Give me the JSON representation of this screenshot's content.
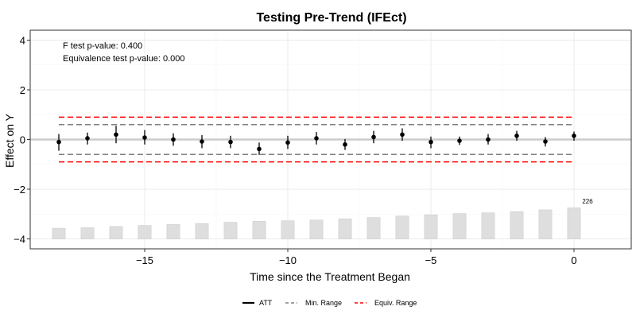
{
  "chart_data": {
    "type": "scatter",
    "title": "Testing Pre-Trend (IFEct)",
    "xlabel": "Time since the Treatment Began",
    "ylabel": "Effect on Y",
    "xlim": [
      -19,
      2
    ],
    "ylim": [
      -4.4,
      4.4
    ],
    "x_ticks": [
      -15,
      -10,
      -5,
      0
    ],
    "y_ticks": [
      -4,
      -2,
      0,
      2,
      4
    ],
    "grid": true,
    "annotations": [
      "F test p-value: 0.400",
      "Equivalence test p-value: 0.000"
    ],
    "count_label": "226",
    "legend": {
      "position": "bottom",
      "entries": [
        {
          "label": "ATT",
          "style": "solid",
          "color": "#000000"
        },
        {
          "label": "Min. Range",
          "style": "dashed",
          "color": "#808080"
        },
        {
          "label": "Equiv. Range",
          "style": "dashed",
          "color": "#ff0000"
        }
      ]
    },
    "min_range": [
      -0.6,
      0.6
    ],
    "equiv_range": [
      -0.9,
      0.9
    ],
    "series": [
      {
        "name": "ATT",
        "x": [
          -18,
          -17,
          -16,
          -15,
          -14,
          -13,
          -12,
          -11,
          -10,
          -9,
          -8,
          -7,
          -6,
          -5,
          -4,
          -3,
          -2,
          -1,
          0
        ],
        "y": [
          -0.1,
          0.05,
          0.2,
          0.08,
          0.0,
          -0.08,
          -0.1,
          -0.38,
          -0.12,
          0.05,
          -0.2,
          0.1,
          0.2,
          -0.1,
          -0.05,
          0.0,
          0.15,
          -0.08,
          0.15
        ],
        "ci_low": [
          -0.45,
          -0.2,
          -0.15,
          -0.2,
          -0.25,
          -0.35,
          -0.35,
          -0.62,
          -0.38,
          -0.2,
          -0.42,
          -0.15,
          -0.05,
          -0.35,
          -0.22,
          -0.2,
          -0.05,
          -0.28,
          -0.05
        ],
        "ci_high": [
          0.22,
          0.28,
          0.55,
          0.38,
          0.25,
          0.18,
          0.15,
          -0.12,
          0.15,
          0.3,
          0.02,
          0.35,
          0.45,
          0.12,
          0.12,
          0.22,
          0.35,
          0.1,
          0.32
        ]
      }
    ],
    "bars": {
      "x": [
        -18,
        -17,
        -16,
        -15,
        -14,
        -13,
        -12,
        -11,
        -10,
        -9,
        -8,
        -7,
        -6,
        -5,
        -4,
        -3,
        -2,
        -1,
        0
      ],
      "top": [
        -3.57,
        -3.55,
        -3.5,
        -3.46,
        -3.42,
        -3.38,
        -3.33,
        -3.29,
        -3.27,
        -3.24,
        -3.19,
        -3.14,
        -3.08,
        -3.03,
        -2.98,
        -2.95,
        -2.9,
        -2.83,
        -2.75
      ],
      "baseline": -4.0,
      "color": "#dedede"
    },
    "colors": {
      "point": "#000000",
      "zero_line": "#cccccc",
      "panel_border": "#333333",
      "grid": "#ebebeb"
    }
  }
}
